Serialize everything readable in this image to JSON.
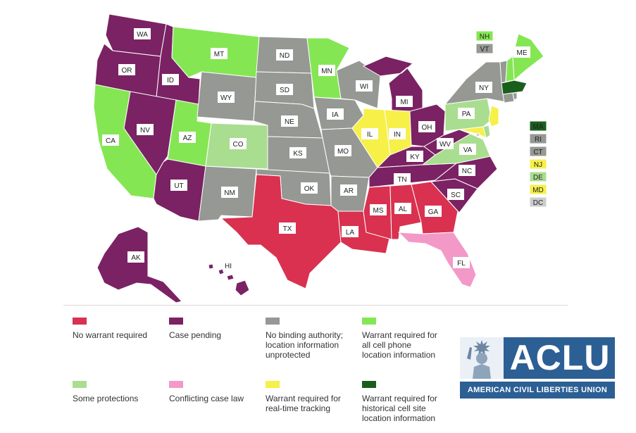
{
  "colors": {
    "no_warrant": "#d9314f",
    "case_pending": "#7a2263",
    "no_binding": "#959893",
    "warrant_all": "#85e654",
    "some_protections": "#a9dd90",
    "conflicting": "#f399c8",
    "real_time": "#f6f048",
    "historical": "#1a5e1e",
    "dc": "#cccccc"
  },
  "states": [
    {
      "code": "WA",
      "category": "case_pending"
    },
    {
      "code": "OR",
      "category": "case_pending"
    },
    {
      "code": "CA",
      "category": "warrant_all"
    },
    {
      "code": "ID",
      "category": "case_pending"
    },
    {
      "code": "NV",
      "category": "case_pending"
    },
    {
      "code": "AZ",
      "category": "case_pending"
    },
    {
      "code": "UT",
      "category": "warrant_all"
    },
    {
      "code": "MT",
      "category": "warrant_all"
    },
    {
      "code": "WY",
      "category": "no_binding"
    },
    {
      "code": "CO",
      "category": "some_protections"
    },
    {
      "code": "NM",
      "category": "no_binding"
    },
    {
      "code": "ND",
      "category": "no_binding"
    },
    {
      "code": "SD",
      "category": "no_binding"
    },
    {
      "code": "NE",
      "category": "no_binding"
    },
    {
      "code": "KS",
      "category": "no_binding"
    },
    {
      "code": "OK",
      "category": "no_binding"
    },
    {
      "code": "TX",
      "category": "no_warrant"
    },
    {
      "code": "MN",
      "category": "warrant_all"
    },
    {
      "code": "IA",
      "category": "no_binding"
    },
    {
      "code": "MO",
      "category": "no_binding"
    },
    {
      "code": "AR",
      "category": "no_binding"
    },
    {
      "code": "LA",
      "category": "no_warrant"
    },
    {
      "code": "WI",
      "category": "no_binding"
    },
    {
      "code": "IL",
      "category": "real_time"
    },
    {
      "code": "MI",
      "category": "case_pending"
    },
    {
      "code": "IN",
      "category": "real_time"
    },
    {
      "code": "OH",
      "category": "case_pending"
    },
    {
      "code": "KY",
      "category": "case_pending"
    },
    {
      "code": "TN",
      "category": "case_pending"
    },
    {
      "code": "MS",
      "category": "no_warrant"
    },
    {
      "code": "AL",
      "category": "no_warrant"
    },
    {
      "code": "GA",
      "category": "no_warrant"
    },
    {
      "code": "FL",
      "category": "conflicting"
    },
    {
      "code": "SC",
      "category": "case_pending"
    },
    {
      "code": "NC",
      "category": "case_pending"
    },
    {
      "code": "VA",
      "category": "some_protections"
    },
    {
      "code": "WV",
      "category": "case_pending"
    },
    {
      "code": "PA",
      "category": "some_protections"
    },
    {
      "code": "NY",
      "category": "no_binding"
    },
    {
      "code": "ME",
      "category": "warrant_all"
    },
    {
      "code": "NH",
      "category": "warrant_all"
    },
    {
      "code": "VT",
      "category": "no_binding"
    },
    {
      "code": "MA",
      "category": "historical"
    },
    {
      "code": "RI",
      "category": "no_binding"
    },
    {
      "code": "CT",
      "category": "no_binding"
    },
    {
      "code": "NJ",
      "category": "real_time"
    },
    {
      "code": "DE",
      "category": "some_protections"
    },
    {
      "code": "MD",
      "category": "real_time"
    },
    {
      "code": "DC",
      "category": "dc"
    },
    {
      "code": "AK",
      "category": "case_pending"
    },
    {
      "code": "HI",
      "category": "case_pending"
    }
  ],
  "legend": [
    {
      "category": "no_warrant",
      "label": "No warrant required"
    },
    {
      "category": "case_pending",
      "label": "Case pending"
    },
    {
      "category": "no_binding",
      "label": "No binding authority;\nlocation information\nunprotected"
    },
    {
      "category": "warrant_all",
      "label": "Warrant required for\nall cell phone\nlocation information"
    },
    {
      "category": "some_protections",
      "label": "Some protections"
    },
    {
      "category": "conflicting",
      "label": "Conflicting case law"
    },
    {
      "category": "real_time",
      "label": "Warrant required for\nreal-time tracking"
    },
    {
      "category": "historical",
      "label": "Warrant required for\nhistorical cell site\nlocation information"
    }
  ],
  "logo": {
    "wordmark": "ACLU",
    "name": "AMERICAN CIVIL LIBERTIES UNION"
  }
}
